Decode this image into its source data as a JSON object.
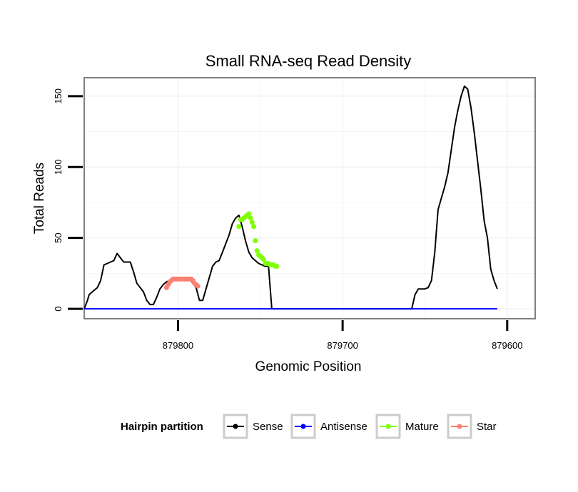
{
  "chart_data": {
    "type": "line",
    "title": "Small RNA-seq Read Density",
    "xlabel": "Genomic Position",
    "ylabel": "Total Reads",
    "x_reversed": true,
    "xlim": [
      879857,
      879583
    ],
    "ylim": [
      -7,
      163
    ],
    "x_ticks": [
      879800,
      879700,
      879600
    ],
    "x_tick_labels": [
      "879800",
      "879700",
      "879600"
    ],
    "y_ticks": [
      0,
      50,
      100,
      150
    ],
    "y_tick_labels": [
      "0",
      "50",
      "100",
      "150"
    ],
    "grid": true,
    "legend": {
      "title": "Hairpin partition",
      "position": "bottom",
      "items": [
        {
          "name": "Sense",
          "color": "#000000"
        },
        {
          "name": "Antisense",
          "color": "#0000ff"
        },
        {
          "name": "Mature",
          "color": "#7fff00"
        },
        {
          "name": "Star",
          "color": "#fa8072"
        }
      ]
    },
    "series": [
      {
        "name": "Sense",
        "color": "#000000",
        "style": "line",
        "x": [
          879857,
          879855,
          879854,
          879852,
          879850,
          879849,
          879847,
          879845,
          879843,
          879841,
          879839,
          879837,
          879835,
          879833,
          879831,
          879829,
          879827,
          879825,
          879823,
          879821,
          879819,
          879817,
          879815,
          879813,
          879811,
          879809,
          879807,
          879805,
          879803,
          879801,
          879799,
          879797,
          879795,
          879793,
          879791,
          879789,
          879787,
          879785,
          879783,
          879781,
          879779,
          879777,
          879775,
          879773,
          879771,
          879769,
          879767,
          879765,
          879763,
          879761,
          879759,
          879757,
          879755,
          879753,
          879751,
          879749,
          879747,
          879745,
          879743,
          879741,
          879739,
          879737,
          879700,
          879658,
          879656,
          879654,
          879652,
          879650,
          879648,
          879646,
          879644,
          879642,
          879640,
          879638,
          879636,
          879634,
          879632,
          879630,
          879628,
          879626,
          879624,
          879622,
          879620,
          879618,
          879616,
          879614,
          879612,
          879610,
          879608,
          879606
        ],
        "values": [
          0,
          6,
          10,
          12,
          14,
          15,
          20,
          31,
          32,
          33,
          34,
          39,
          36,
          33,
          33,
          33,
          26,
          18,
          15,
          12,
          6,
          3,
          3,
          8,
          14,
          17,
          19,
          20,
          21,
          21,
          21,
          21,
          21,
          21,
          18,
          15,
          6,
          6,
          14,
          22,
          30,
          33,
          34,
          40,
          46,
          52,
          60,
          64,
          66,
          58,
          48,
          40,
          36,
          34,
          32,
          31,
          30,
          30,
          0,
          0,
          0,
          0,
          0,
          0,
          10,
          14,
          14,
          14,
          15,
          20,
          40,
          70,
          78,
          86,
          96,
          112,
          128,
          140,
          150,
          157,
          155,
          142,
          124,
          104,
          84,
          62,
          50,
          28,
          20,
          14
        ]
      },
      {
        "name": "Antisense",
        "color": "#0000ff",
        "style": "line",
        "x": [
          879857,
          879606
        ],
        "values": [
          0,
          0
        ]
      },
      {
        "name": "Mature",
        "color": "#7fff00",
        "style": "points",
        "x": [
          879763,
          879762,
          879761,
          879760,
          879759,
          879758,
          879757,
          879756,
          879755,
          879754,
          879753,
          879752,
          879751,
          879750,
          879749,
          879748,
          879747,
          879746,
          879745,
          879744,
          879743,
          879742,
          879741,
          879740
        ],
        "values": [
          58,
          63,
          63,
          64,
          65,
          66,
          67,
          64,
          61,
          58,
          48,
          41,
          38,
          37,
          36,
          35,
          32,
          32,
          32,
          31,
          31,
          31,
          30,
          30
        ]
      },
      {
        "name": "Star",
        "color": "#fa8072",
        "style": "points",
        "x": [
          879807,
          879806,
          879805,
          879804,
          879803,
          879802,
          879801,
          879800,
          879799,
          879798,
          879797,
          879796,
          879795,
          879794,
          879793,
          879792,
          879791,
          879790,
          879789,
          879788
        ],
        "values": [
          15,
          17,
          19,
          20,
          21,
          21,
          21,
          21,
          21,
          21,
          21,
          21,
          21,
          21,
          21,
          21,
          20,
          18,
          17,
          16
        ]
      }
    ]
  }
}
